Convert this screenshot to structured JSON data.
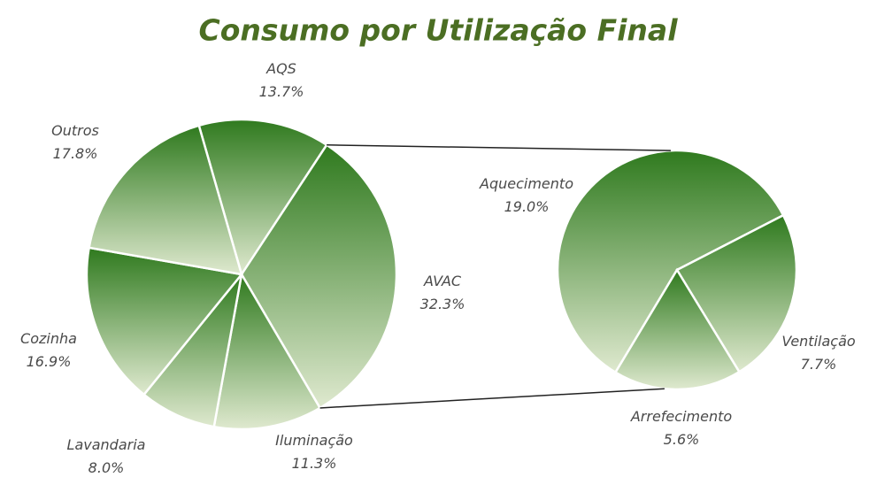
{
  "chart_data": {
    "type": "pie_of_pie",
    "title": "Consumo por Utilização Final",
    "categories": [
      "AQS",
      "AVAC",
      "Iluminação",
      "Lavandaria",
      "Cozinha",
      "Outros"
    ],
    "values": [
      13.7,
      32.3,
      11.3,
      8.0,
      16.9,
      17.8
    ],
    "value_labels": [
      "13.7%",
      "32.3%",
      "11.3%",
      "8.0%",
      "16.9%",
      "17.8%"
    ],
    "secondary": {
      "categories": [
        "Aquecimento",
        "Ventilação",
        "Arrefecimento"
      ],
      "values": [
        19.0,
        7.7,
        5.6
      ],
      "value_labels": [
        "19.0%",
        "7.7%",
        "5.6%"
      ]
    },
    "color": "#2f7a1e"
  }
}
